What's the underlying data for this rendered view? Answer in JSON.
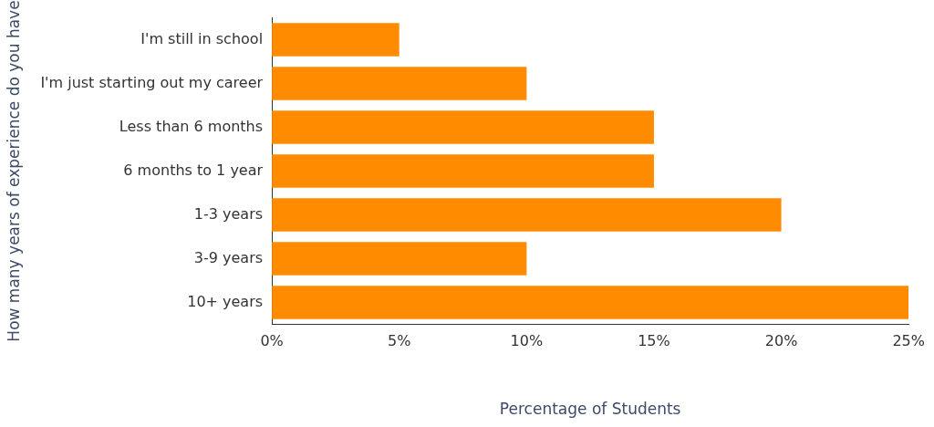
{
  "chart_data": {
    "type": "bar",
    "orientation": "horizontal",
    "categories": [
      "I'm still in school",
      "I'm just starting out my career",
      "Less than 6 months",
      "6 months to 1 year",
      "1-3 years",
      "3-9 years",
      "10+ years"
    ],
    "values": [
      5,
      10,
      15,
      15,
      20,
      10,
      25
    ],
    "color": "#ff8c00",
    "xlabel": "Percentage of Students",
    "ylabel": "How many years of experience do you have",
    "xlim": [
      0,
      25
    ],
    "xticks": [
      {
        "value": 0,
        "label": "0%"
      },
      {
        "value": 5,
        "label": "5%"
      },
      {
        "value": 10,
        "label": "10%"
      },
      {
        "value": 15,
        "label": "15%"
      },
      {
        "value": 20,
        "label": "20%"
      },
      {
        "value": 25,
        "label": "25%"
      }
    ],
    "grid": false,
    "legend": false
  }
}
